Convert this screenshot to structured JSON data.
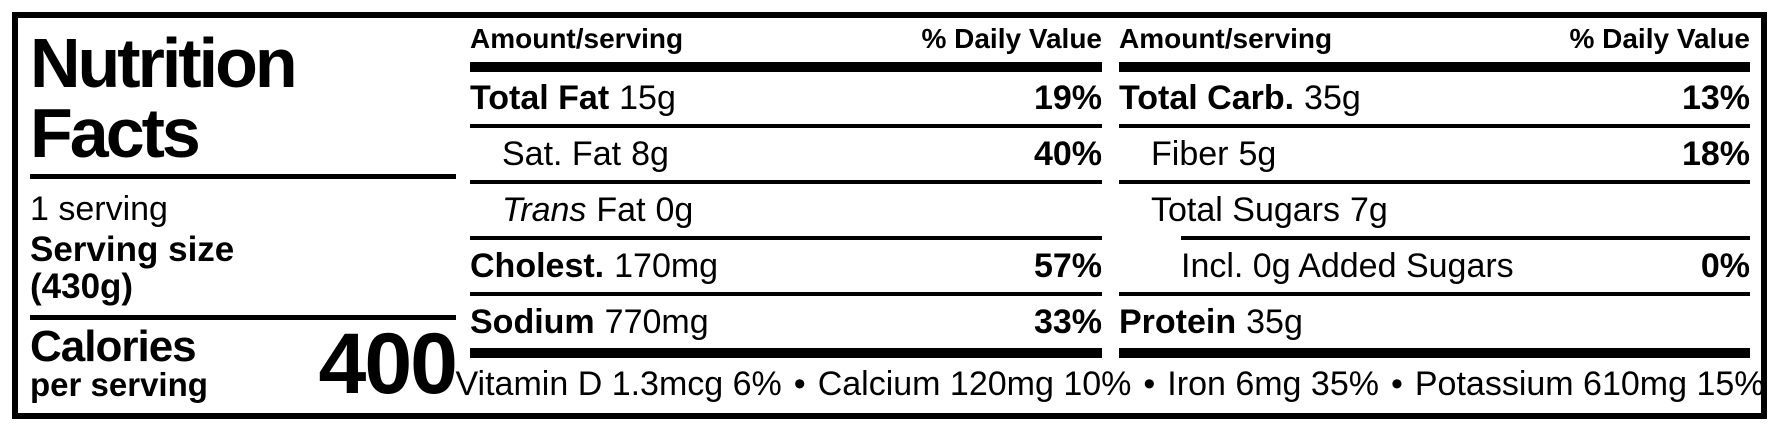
{
  "left_panel": {
    "title": "Nutrition Facts",
    "serving_quantity": "1 serving",
    "serving_size_label": "Serving size",
    "serving_size_value": "(430g)",
    "calories_label": "Calories",
    "calories_sublabel": "per serving",
    "calories_value": "400"
  },
  "table": {
    "header": {
      "amount_label": "Amount/serving",
      "dv_label": "% Daily Value"
    },
    "columns": [
      {
        "rows": [
          {
            "name": "Total Fat",
            "amount": "15g",
            "dv": "19%"
          },
          {
            "name": "Sat. Fat",
            "amount": "8g",
            "dv": "40%"
          },
          {
            "name": "Trans",
            "name_rest": "Fat",
            "amount": "0g",
            "dv": ""
          },
          {
            "name": "Cholest.",
            "amount": "170mg",
            "dv": "57%"
          },
          {
            "name": "Sodium",
            "amount": "770mg",
            "dv": "33%"
          }
        ]
      },
      {
        "rows": [
          {
            "name": "Total Carb.",
            "amount": "35g",
            "dv": "13%"
          },
          {
            "name": "Fiber",
            "amount": "5g",
            "dv": "18%"
          },
          {
            "name": "Total Sugars",
            "amount": "7g",
            "dv": ""
          },
          {
            "name": "Incl. 0g Added Sugars",
            "amount": "",
            "dv": "0%"
          },
          {
            "name": "Protein",
            "amount": "35g",
            "dv": ""
          }
        ]
      }
    ]
  },
  "footer": {
    "separator": "•",
    "items": [
      "Vitamin D 1.3mcg 6%",
      "Calcium 120mg 10%",
      "Iron 6mg 35%",
      "Potassium 610mg 15%"
    ]
  },
  "colors": {
    "ink": "#000000",
    "background": "#ffffff"
  }
}
